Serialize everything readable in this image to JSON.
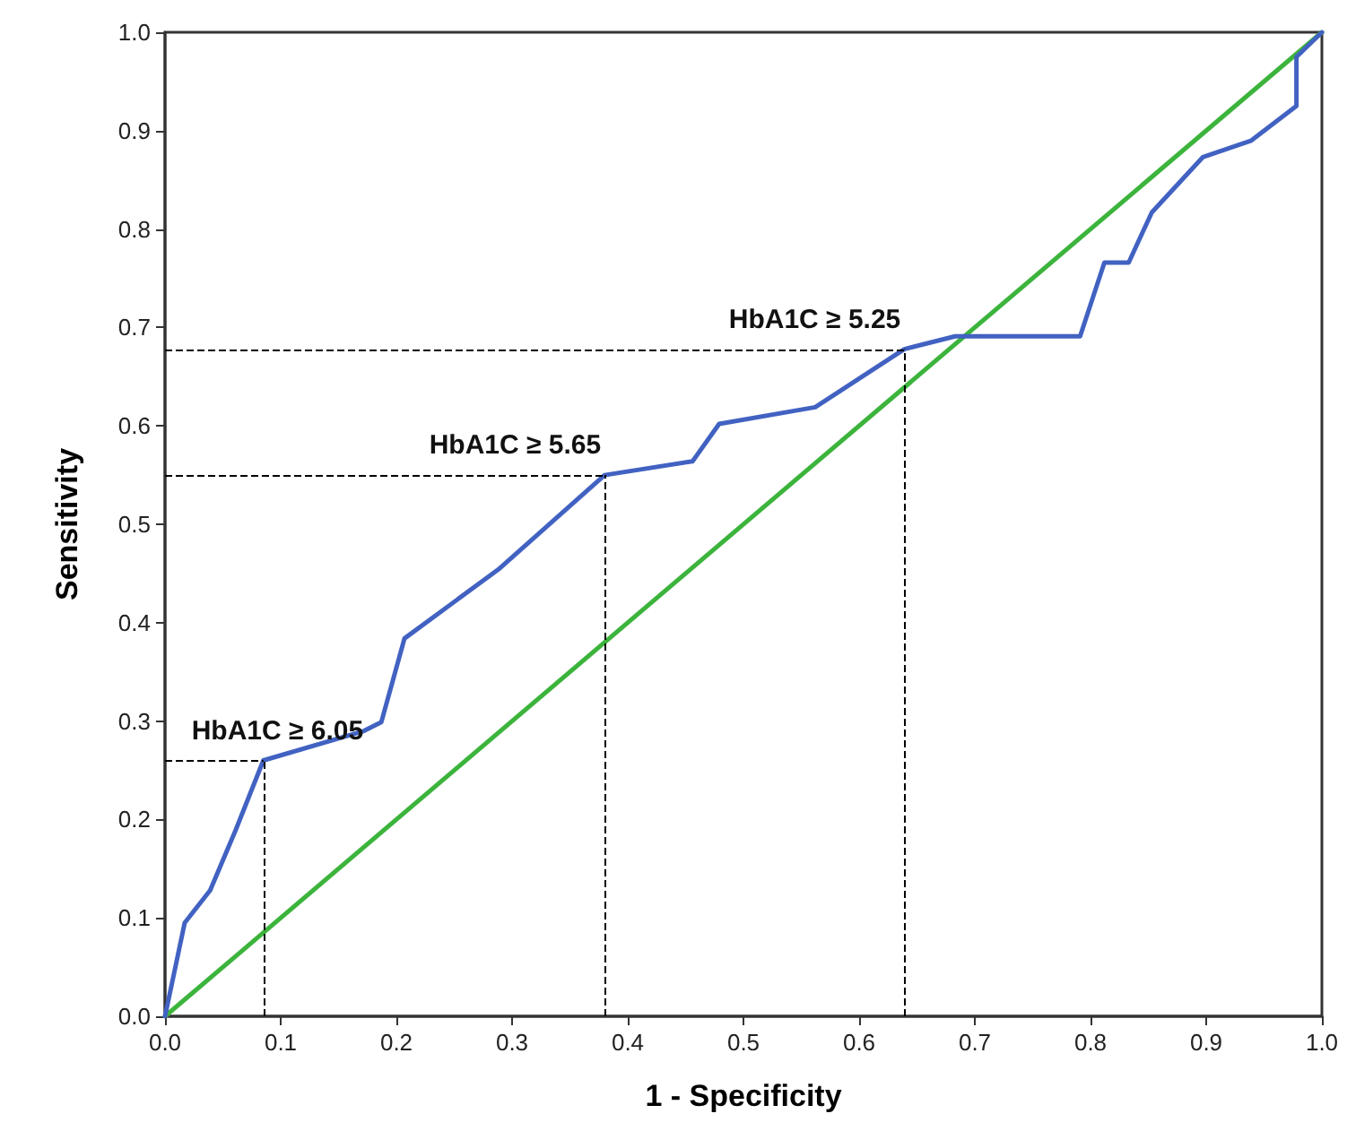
{
  "chart_data": {
    "type": "line",
    "xlabel": "1 - Specificity",
    "ylabel": "Sensitivity",
    "xlim": [
      0,
      1
    ],
    "ylim": [
      0,
      1
    ],
    "xticks": [
      {
        "value": 0,
        "label": "0.0"
      },
      0.1,
      0.2,
      0.3,
      0.4,
      0.5,
      0.6,
      0.7,
      0.8,
      0.9,
      {
        "value": 1,
        "label": "1.0"
      }
    ],
    "yticks": [
      {
        "value": 0,
        "label": "0.0"
      },
      0.1,
      0.2,
      0.3,
      0.4,
      0.5,
      0.6,
      0.7,
      0.8,
      0.9,
      {
        "value": 1,
        "label": "1.0"
      }
    ],
    "grid": false,
    "marker": "none",
    "line_style": "solid",
    "series": [
      {
        "color": "#4262c2",
        "x": [
          0,
          0.017,
          0.039,
          0.061,
          0.085,
          0.172,
          0.187,
          0.207,
          0.288,
          0.38,
          0.456,
          0.479,
          0.562,
          0.639,
          0.683,
          0.791,
          0.812,
          0.833,
          0.853,
          0.897,
          0.939,
          0.978,
          0.978,
          1
        ],
        "values": [
          0,
          0.095,
          0.128,
          0.189,
          0.26,
          0.29,
          0.299,
          0.384,
          0.454,
          0.55,
          0.564,
          0.602,
          0.619,
          0.678,
          0.691,
          0.691,
          0.766,
          0.766,
          0.817,
          0.873,
          0.89,
          0.925,
          0.975,
          1
        ]
      },
      {
        "color": "#3cb43c",
        "x": [
          0,
          1
        ],
        "values": [
          0,
          1
        ]
      }
    ],
    "annotations": [
      {
        "text": "HbA1C ≥ 6.05",
        "x": 0.085,
        "y": 0.26
      },
      {
        "text": "HbA1C ≥ 5.65",
        "x": 0.38,
        "y": 0.55
      },
      {
        "text": "HbA1C ≥ 5.25",
        "x": 0.639,
        "y": 0.678
      }
    ]
  }
}
